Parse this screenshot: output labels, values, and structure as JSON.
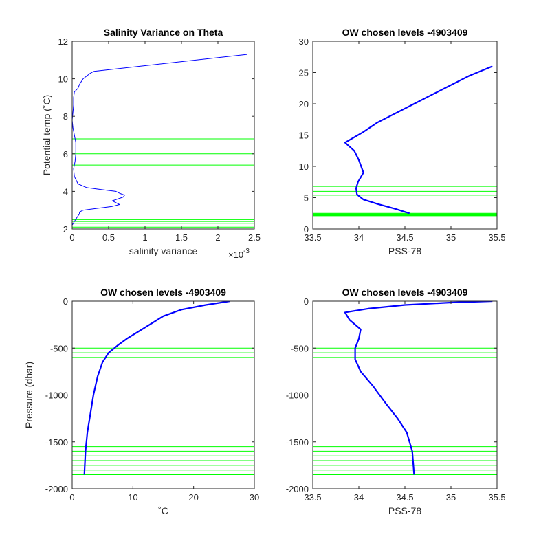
{
  "chart_data": [
    {
      "type": "line",
      "title": "Salinity Variance on Theta",
      "xlabel": "salinity variance",
      "ylabel": "Potential temp (˚C)",
      "x_exponent": "×10",
      "x_exponent_power": "-3",
      "xlim": [
        0,
        0.0025
      ],
      "ylim": [
        2,
        12
      ],
      "xticks": [
        0,
        0.0005,
        0.001,
        0.0015,
        0.002,
        0.0025
      ],
      "xtick_labels": [
        "0",
        "0.5",
        "1",
        "1.5",
        "2",
        "2.5"
      ],
      "yticks": [
        2,
        4,
        6,
        8,
        10,
        12
      ],
      "ytick_labels": [
        "2",
        "4",
        "6",
        "8",
        "10",
        "12"
      ],
      "series": [
        {
          "color": "#0000ff",
          "x": [
            0.0,
            3e-05,
            8e-05,
            0.0001,
            0.0001,
            0.00015,
            0.00055,
            0.00065,
            0.00055,
            0.0007,
            0.00072,
            0.00065,
            0.0006,
            0.0004,
            0.0002,
            8e-05,
            3e-05,
            2e-05,
            4e-05,
            5e-05,
            5e-05,
            3e-05,
            1e-05,
            0.0,
            1e-05,
            2e-05,
            2e-05,
            3e-05,
            8e-05,
            0.0001,
            0.00015,
            0.00025,
            0.0003,
            0.0024
          ],
          "y": [
            2.2,
            2.4,
            2.7,
            2.8,
            2.9,
            3.0,
            3.2,
            3.3,
            3.5,
            3.7,
            3.8,
            3.9,
            4.0,
            4.1,
            4.2,
            4.4,
            4.8,
            5.2,
            5.6,
            6.0,
            6.6,
            7.0,
            7.4,
            7.8,
            8.2,
            8.6,
            9.0,
            9.3,
            9.5,
            9.7,
            10.0,
            10.3,
            10.4,
            11.3
          ]
        }
      ],
      "hlines": [
        6.8,
        6.0,
        5.4,
        2.5,
        2.4,
        2.3,
        2.2,
        2.1
      ],
      "hline_color": "#00ff00"
    },
    {
      "type": "line",
      "title": "OW chosen levels -4903409",
      "xlabel": "PSS-78",
      "ylabel": "",
      "xlim": [
        33.5,
        35.5
      ],
      "ylim": [
        0,
        30
      ],
      "xticks": [
        33.5,
        34,
        34.5,
        35,
        35.5
      ],
      "xtick_labels": [
        "33.5",
        "34",
        "34.5",
        "35",
        "35.5"
      ],
      "yticks": [
        0,
        5,
        10,
        15,
        20,
        25,
        30
      ],
      "ytick_labels": [
        "0",
        "5",
        "10",
        "15",
        "20",
        "25",
        "30"
      ],
      "series": [
        {
          "color": "#0000ff",
          "x": [
            34.55,
            34.4,
            34.2,
            34.05,
            33.98,
            33.97,
            33.99,
            34.05,
            34.0,
            33.95,
            33.85,
            34.05,
            34.2,
            34.4,
            34.6,
            34.8,
            35.0,
            35.2,
            35.45
          ],
          "y": [
            2.5,
            3.2,
            4.0,
            4.7,
            5.5,
            6.5,
            7.5,
            9.0,
            11.0,
            12.5,
            13.8,
            15.5,
            17.0,
            18.5,
            20.0,
            21.5,
            23.0,
            24.5,
            26.0
          ]
        }
      ],
      "hlines": [
        6.8,
        6.0,
        5.4,
        2.5,
        2.4,
        2.3,
        2.2,
        2.1
      ],
      "hline_color": "#00ff00"
    },
    {
      "type": "line",
      "title": "OW chosen levels -4903409",
      "xlabel": "˚C",
      "ylabel": "Pressure (dbar)",
      "xlim": [
        0,
        30
      ],
      "ylim": [
        -2000,
        0
      ],
      "xticks": [
        0,
        10,
        20,
        30
      ],
      "xtick_labels": [
        "0",
        "10",
        "20",
        "30"
      ],
      "yticks": [
        -2000,
        -1500,
        -1000,
        -500,
        0
      ],
      "ytick_labels": [
        "-2000",
        "-1500",
        "-1000",
        "-500",
        "0"
      ],
      "series": [
        {
          "color": "#0000ff",
          "x": [
            2.0,
            2.2,
            2.5,
            3.0,
            3.5,
            4.2,
            5.0,
            6.0,
            7.5,
            9.0,
            11.0,
            13.0,
            15.0,
            18.0,
            22.0,
            26.0
          ],
          "y": [
            -1850,
            -1600,
            -1400,
            -1200,
            -1000,
            -800,
            -650,
            -550,
            -470,
            -400,
            -320,
            -240,
            -160,
            -90,
            -40,
            0
          ]
        }
      ],
      "hlines": [
        -500,
        -550,
        -600,
        -1550,
        -1600,
        -1650,
        -1700,
        -1750,
        -1800,
        -1850
      ],
      "hline_color": "#00ff00"
    },
    {
      "type": "line",
      "title": "OW chosen levels -4903409",
      "xlabel": "PSS-78",
      "ylabel": "",
      "xlim": [
        33.5,
        35.5
      ],
      "ylim": [
        -2000,
        0
      ],
      "xticks": [
        33.5,
        34,
        34.5,
        35,
        35.5
      ],
      "xtick_labels": [
        "33.5",
        "34",
        "34.5",
        "35",
        "35.5"
      ],
      "yticks": [
        -2000,
        -1500,
        -1000,
        -500,
        0
      ],
      "ytick_labels": [
        "-2000",
        "-1500",
        "-1000",
        "-500",
        "0"
      ],
      "series": [
        {
          "color": "#0000ff",
          "x": [
            34.6,
            34.58,
            34.52,
            34.42,
            34.3,
            34.15,
            34.02,
            33.96,
            33.96,
            34.0,
            34.02,
            33.9,
            33.85,
            34.1,
            34.5,
            35.0,
            35.45
          ],
          "y": [
            -1850,
            -1600,
            -1400,
            -1250,
            -1100,
            -900,
            -750,
            -620,
            -500,
            -400,
            -300,
            -200,
            -120,
            -80,
            -40,
            -15,
            0
          ]
        }
      ],
      "hlines": [
        -500,
        -550,
        -600,
        -1550,
        -1600,
        -1650,
        -1700,
        -1750,
        -1800,
        -1850
      ],
      "hline_color": "#00ff00"
    }
  ]
}
